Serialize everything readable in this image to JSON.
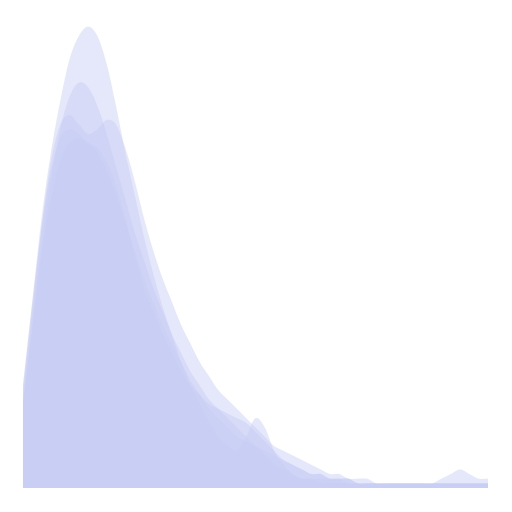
{
  "chart_data": {
    "type": "area",
    "title": "",
    "xlabel": "",
    "ylabel": "",
    "grid": false,
    "legend": "none",
    "xlim": [
      0,
      100
    ],
    "ylim": [
      0,
      100
    ],
    "fill_color": "#c5cdf5",
    "fill_opacity": 0.45,
    "series": [
      {
        "x": [
          0,
          2,
          4,
          6,
          8,
          10,
          12,
          14,
          16,
          18,
          20,
          22,
          24,
          26,
          28,
          30,
          32,
          34,
          36,
          38,
          40,
          42,
          44,
          46,
          48,
          50,
          52,
          54,
          56,
          58,
          60,
          62,
          64,
          66,
          68,
          70,
          72,
          74,
          76,
          78,
          80,
          82,
          84,
          86,
          88,
          90,
          92,
          94,
          96,
          98,
          100
        ],
        "y": [
          22,
          40,
          58,
          72,
          83,
          92,
          97,
          99,
          97,
          91,
          82,
          72,
          63,
          54,
          46,
          39,
          33,
          27,
          22,
          18,
          14,
          11,
          9,
          8,
          11,
          15,
          13,
          8,
          5,
          3,
          2,
          2,
          1,
          1,
          1,
          1,
          1,
          1,
          1,
          1,
          1,
          1,
          1,
          1,
          1,
          1,
          1,
          1,
          1,
          1,
          1
        ]
      },
      {
        "x": [
          0,
          2,
          4,
          6,
          8,
          10,
          12,
          14,
          16,
          18,
          20,
          22,
          24,
          26,
          28,
          30,
          32,
          34,
          36,
          38,
          40,
          42,
          44,
          46,
          48,
          50,
          52,
          54,
          56,
          58,
          60,
          62,
          64,
          66,
          68,
          70,
          72,
          74,
          76,
          78,
          80,
          82,
          84,
          86,
          88,
          90,
          92,
          94,
          96,
          98,
          100
        ],
        "y": [
          18,
          35,
          52,
          66,
          77,
          84,
          87,
          86,
          82,
          76,
          69,
          62,
          55,
          49,
          43,
          38,
          33,
          29,
          25,
          22,
          19,
          17,
          15,
          13,
          11,
          9,
          7,
          5,
          4,
          3,
          2,
          2,
          2,
          2,
          2,
          1,
          1,
          1,
          1,
          1,
          1,
          1,
          1,
          1,
          1,
          2,
          3,
          4,
          3,
          2,
          2
        ]
      },
      {
        "x": [
          0,
          2,
          4,
          6,
          8,
          10,
          12,
          14,
          16,
          18,
          20,
          22,
          24,
          26,
          28,
          30,
          32,
          34,
          36,
          38,
          40,
          42,
          44,
          46,
          48,
          50,
          52,
          54,
          56,
          58,
          60,
          62,
          64,
          66,
          68,
          70,
          72,
          74,
          76,
          78,
          80,
          82,
          84,
          86,
          88,
          90,
          92,
          94,
          96,
          98,
          100
        ],
        "y": [
          20,
          38,
          56,
          70,
          78,
          80,
          78,
          76,
          77,
          79,
          78,
          73,
          66,
          58,
          51,
          45,
          40,
          35,
          31,
          27,
          24,
          21,
          19,
          17,
          15,
          13,
          11,
          9,
          8,
          7,
          6,
          5,
          4,
          3,
          3,
          2,
          2,
          2,
          1,
          1,
          1,
          1,
          1,
          1,
          1,
          1,
          1,
          1,
          1,
          1,
          1
        ]
      },
      {
        "x": [
          0,
          2,
          4,
          6,
          8,
          10,
          12,
          14,
          16,
          18,
          20,
          22,
          24,
          26,
          28,
          30,
          32,
          34,
          36,
          38,
          40,
          42,
          44,
          46,
          48,
          50,
          52,
          54,
          56,
          58,
          60,
          62,
          64,
          66,
          68,
          70,
          72,
          74,
          76,
          78,
          80,
          82,
          84,
          86,
          88,
          90,
          92,
          94,
          96,
          98,
          100
        ],
        "y": [
          22,
          40,
          56,
          68,
          75,
          77,
          76,
          74,
          73,
          70,
          65,
          58,
          50,
          43,
          38,
          33,
          29,
          25,
          22,
          20,
          18,
          17,
          16,
          15,
          14,
          12,
          10,
          8,
          6,
          5,
          4,
          3,
          3,
          2,
          2,
          2,
          1,
          1,
          1,
          1,
          1,
          1,
          1,
          1,
          1,
          1,
          1,
          1,
          1,
          1,
          1
        ]
      },
      {
        "x": [
          0,
          2,
          4,
          6,
          8,
          10,
          12,
          14,
          16,
          18,
          20,
          22,
          24,
          26,
          28,
          30,
          32,
          34,
          36,
          38,
          40,
          42,
          44,
          46,
          48,
          50,
          52,
          54,
          56,
          58,
          60,
          62,
          64,
          66,
          68,
          70,
          72,
          74,
          76,
          78,
          80,
          82,
          84,
          86,
          88,
          90,
          92,
          94,
          96,
          98,
          100
        ],
        "y": [
          18,
          34,
          50,
          62,
          70,
          74,
          75,
          74,
          72,
          68,
          63,
          57,
          51,
          45,
          40,
          35,
          31,
          27,
          23,
          20,
          17,
          15,
          13,
          11,
          10,
          9,
          8,
          7,
          6,
          5,
          4,
          3,
          3,
          2,
          2,
          2,
          1,
          1,
          1,
          1,
          1,
          1,
          1,
          1,
          1,
          1,
          1,
          1,
          1,
          1,
          1
        ]
      }
    ]
  }
}
